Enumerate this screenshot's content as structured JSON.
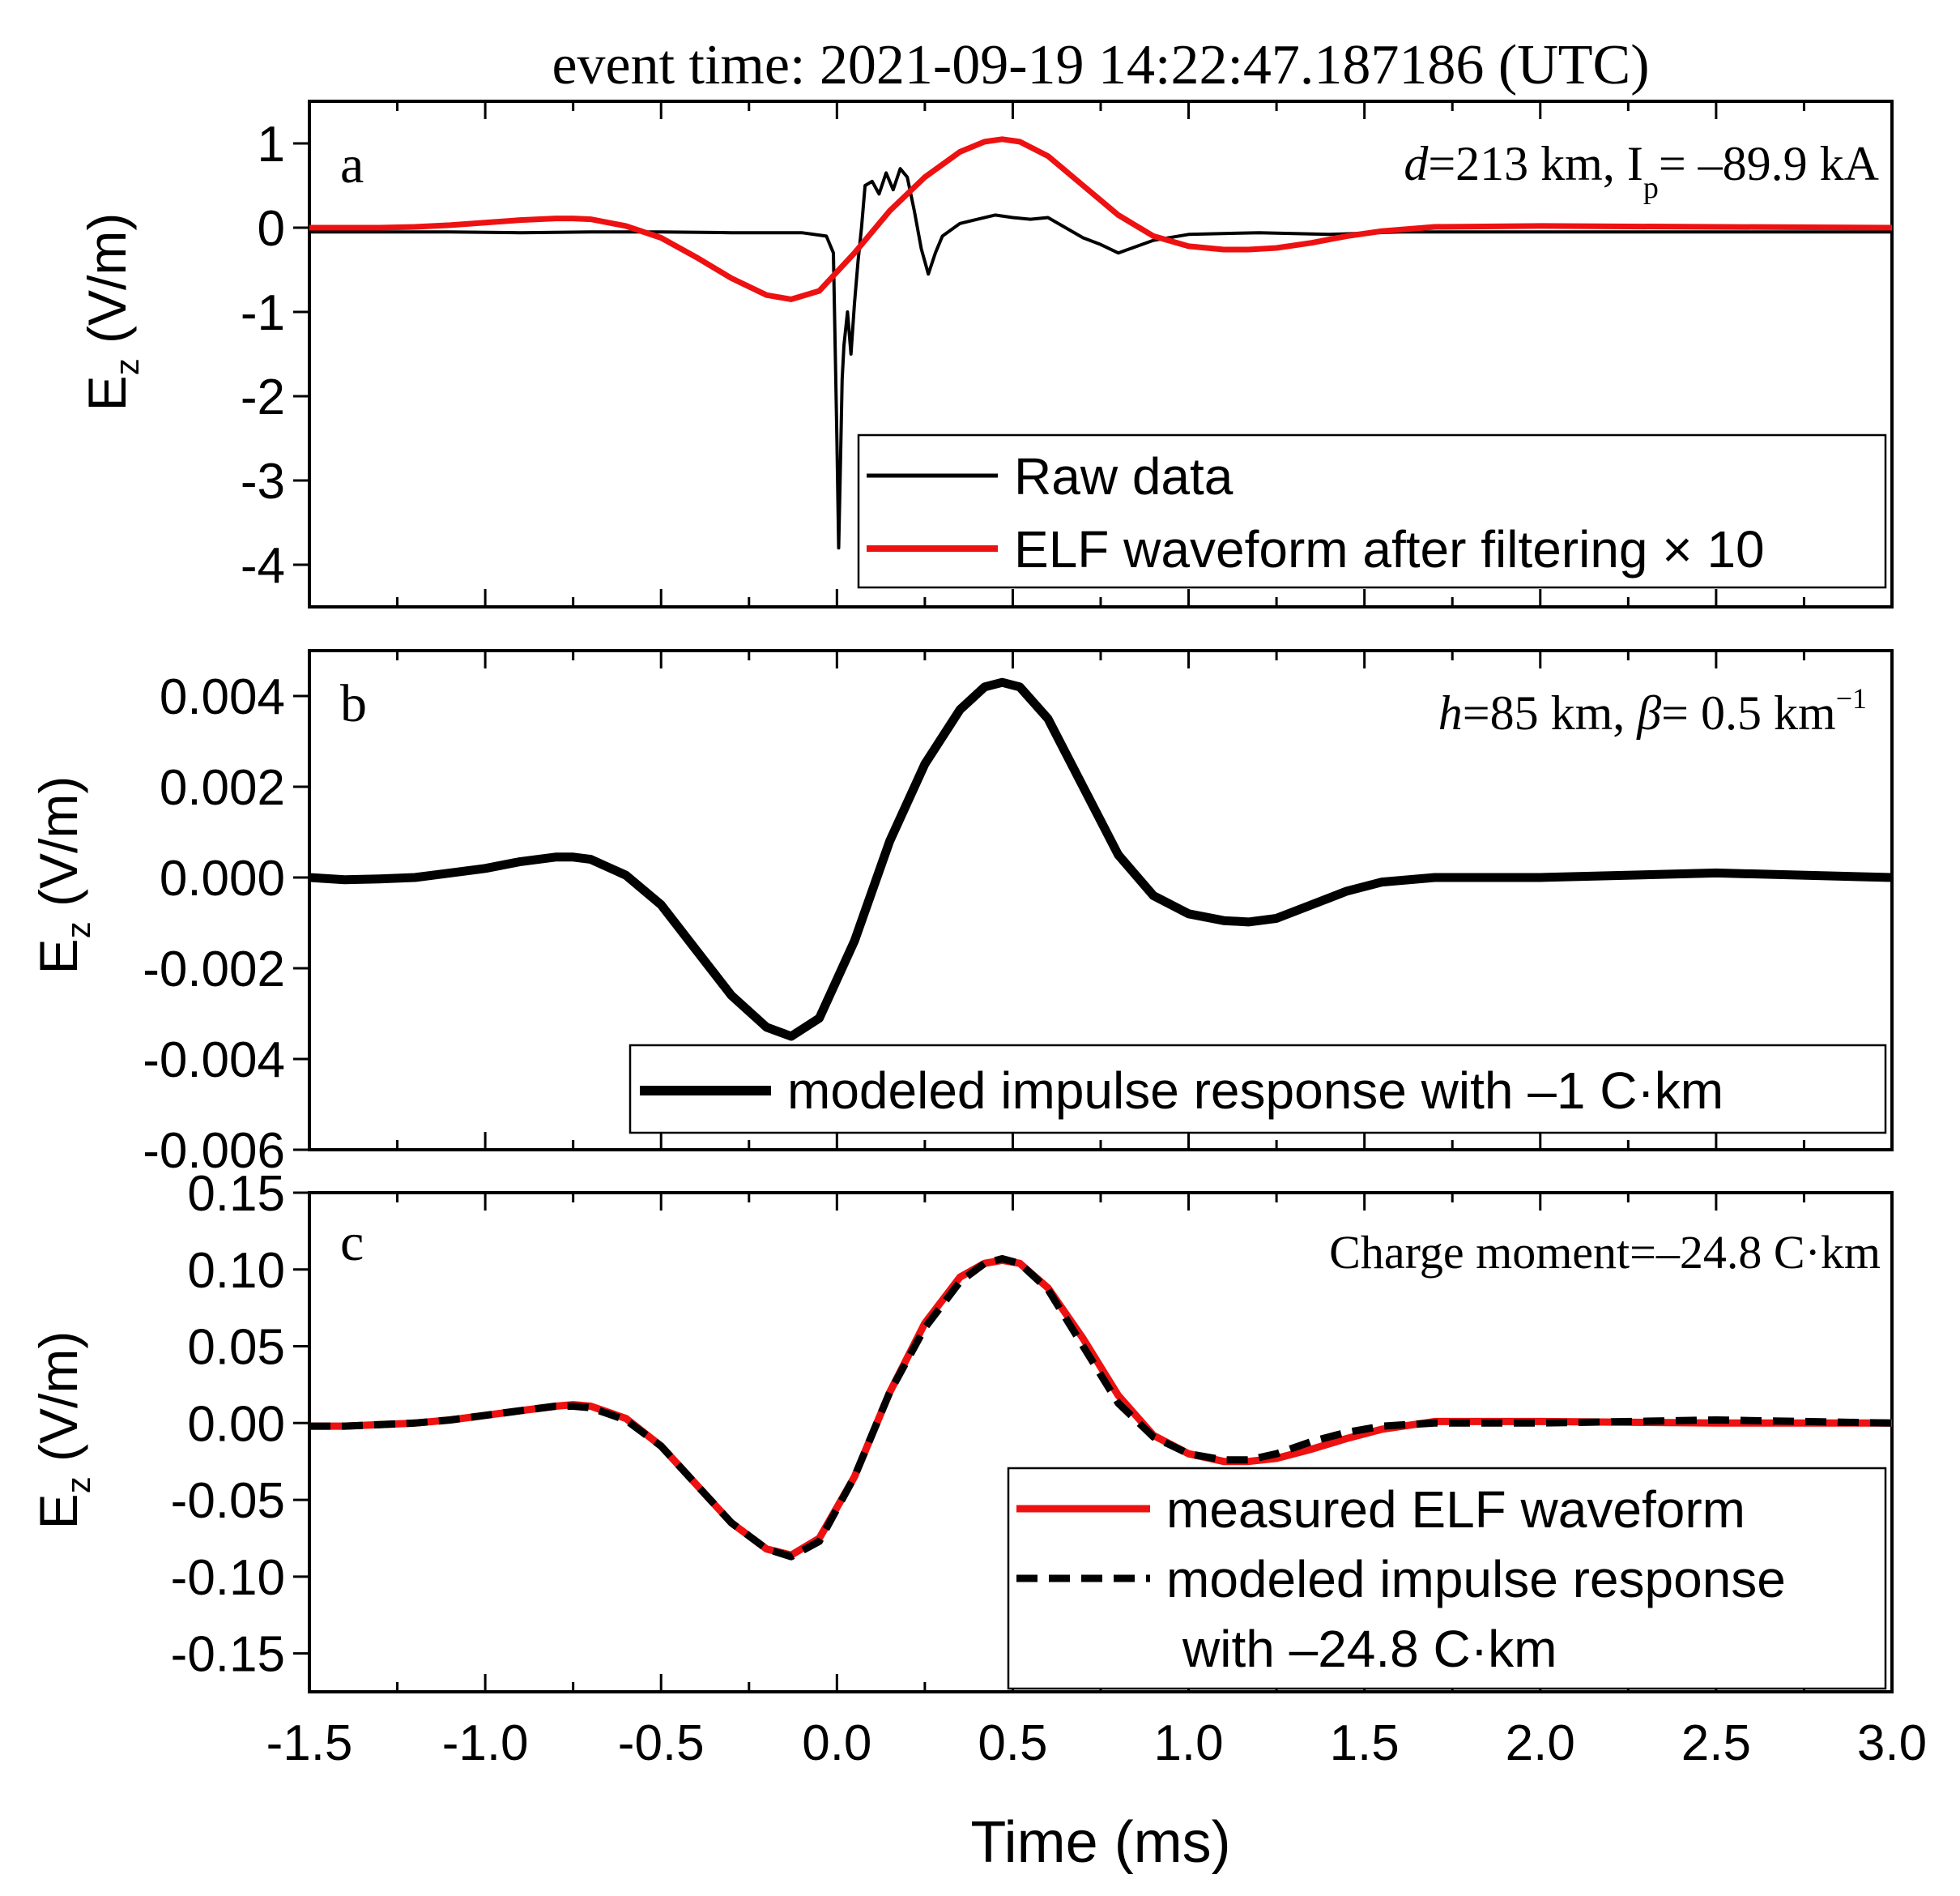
{
  "figure_title": "event time: 2021-09-19 14:22:47.187186 (UTC)",
  "shared_xlabel": "Time (ms)",
  "colors": {
    "red": "#ee1111",
    "black": "#000000"
  },
  "chart_data": [
    {
      "type": "line",
      "panel_letter": "a",
      "ylabel": {
        "main": "E",
        "sub": "z",
        "unit": " (V/m)"
      },
      "annotation": {
        "d_sym": "d",
        "d_rest": "=213 km, I",
        "i_sub": "p",
        "i_rest": "= –89.9 kA"
      },
      "xlim": [
        -1.5,
        3.0
      ],
      "ylim": [
        -4.5,
        1.5
      ],
      "yticks": [
        1,
        0,
        -1,
        -2,
        -3,
        -4
      ],
      "yticklabels": [
        "1",
        "0",
        "-1",
        "-2",
        "-3",
        "-4"
      ],
      "legend": {
        "placement": "bottom-right",
        "entries": [
          "Raw data",
          "ELF waveform after filtering × 10"
        ]
      },
      "series": [
        {
          "name": "Raw data",
          "color": "#000000",
          "style": "solid-thin",
          "x": [
            -1.5,
            -1.3,
            -1.1,
            -0.9,
            -0.7,
            -0.5,
            -0.3,
            -0.1,
            -0.03,
            -0.01,
            0.0,
            0.005,
            0.01,
            0.015,
            0.02,
            0.03,
            0.04,
            0.05,
            0.06,
            0.07,
            0.08,
            0.1,
            0.12,
            0.14,
            0.16,
            0.18,
            0.2,
            0.22,
            0.24,
            0.26,
            0.28,
            0.3,
            0.35,
            0.4,
            0.45,
            0.5,
            0.55,
            0.6,
            0.65,
            0.7,
            0.75,
            0.8,
            0.9,
            1.0,
            1.2,
            1.4,
            1.6,
            1.8,
            2.0,
            2.2,
            2.4,
            2.6,
            2.8,
            3.0
          ],
          "y": [
            -0.05,
            -0.05,
            -0.05,
            -0.06,
            -0.05,
            -0.05,
            -0.06,
            -0.06,
            -0.1,
            -0.3,
            -2.5,
            -3.8,
            -2.8,
            -1.8,
            -1.4,
            -1.0,
            -1.5,
            -0.9,
            -0.4,
            0.0,
            0.5,
            0.55,
            0.4,
            0.65,
            0.45,
            0.7,
            0.6,
            0.2,
            -0.25,
            -0.55,
            -0.3,
            -0.1,
            0.05,
            0.1,
            0.15,
            0.12,
            0.1,
            0.12,
            0.0,
            -0.12,
            -0.2,
            -0.3,
            -0.15,
            -0.08,
            -0.06,
            -0.08,
            -0.05,
            -0.05,
            -0.05,
            -0.05,
            -0.05,
            -0.05,
            -0.05,
            -0.05
          ]
        },
        {
          "name": "ELF waveform after filtering × 10",
          "color": "#ee1111",
          "style": "solid",
          "x": [
            -1.5,
            -1.4,
            -1.3,
            -1.2,
            -1.1,
            -1.0,
            -0.9,
            -0.8,
            -0.75,
            -0.7,
            -0.6,
            -0.5,
            -0.4,
            -0.3,
            -0.2,
            -0.13,
            -0.05,
            0.05,
            0.15,
            0.25,
            0.35,
            0.42,
            0.47,
            0.52,
            0.6,
            0.7,
            0.8,
            0.9,
            1.0,
            1.1,
            1.17,
            1.25,
            1.35,
            1.45,
            1.55,
            1.7,
            2.0,
            2.5,
            3.0
          ],
          "y": [
            0.0,
            0.0,
            0.0,
            0.01,
            0.03,
            0.06,
            0.09,
            0.11,
            0.11,
            0.1,
            0.02,
            -0.12,
            -0.35,
            -0.6,
            -0.8,
            -0.85,
            -0.75,
            -0.3,
            0.2,
            0.6,
            0.9,
            1.02,
            1.05,
            1.02,
            0.85,
            0.5,
            0.15,
            -0.1,
            -0.22,
            -0.26,
            -0.26,
            -0.24,
            -0.18,
            -0.1,
            -0.04,
            0.01,
            0.02,
            0.01,
            0.0
          ]
        }
      ]
    },
    {
      "type": "line",
      "panel_letter": "b",
      "ylabel": {
        "main": "E",
        "sub": "z",
        "unit": " (V/m)"
      },
      "annotation": {
        "h_sym": "h",
        "h_rest": "=85 km, ",
        "beta_sym": "β",
        "beta_rest": "= 0.5 km",
        "exp": "−1"
      },
      "xlim": [
        -1.5,
        3.0
      ],
      "ylim": [
        -0.006,
        0.005
      ],
      "yticks": [
        0.004,
        0.002,
        0.0,
        -0.002,
        -0.004,
        -0.006
      ],
      "yticklabels": [
        "0.004",
        "0.002",
        "0.000",
        "-0.002",
        "-0.004",
        "-0.006"
      ],
      "legend": {
        "placement": "bottom-right",
        "entries": [
          "modeled impulse response with –1 C·km"
        ]
      },
      "series": [
        {
          "name": "modeled impulse response with –1 C·km",
          "color": "#000000",
          "style": "solid-thick",
          "x": [
            -1.5,
            -1.4,
            -1.3,
            -1.2,
            -1.1,
            -1.0,
            -0.9,
            -0.8,
            -0.75,
            -0.7,
            -0.6,
            -0.5,
            -0.4,
            -0.3,
            -0.2,
            -0.13,
            -0.05,
            0.05,
            0.15,
            0.25,
            0.35,
            0.42,
            0.47,
            0.52,
            0.6,
            0.7,
            0.8,
            0.9,
            1.0,
            1.1,
            1.17,
            1.25,
            1.35,
            1.45,
            1.55,
            1.7,
            2.0,
            2.5,
            3.0
          ],
          "y": [
            0.0,
            -5e-05,
            -3e-05,
            0.0,
            0.0001,
            0.0002,
            0.00035,
            0.00045,
            0.00045,
            0.0004,
            5e-05,
            -0.0006,
            -0.0016,
            -0.0026,
            -0.0033,
            -0.0035,
            -0.0031,
            -0.0014,
            0.0008,
            0.0025,
            0.0037,
            0.0042,
            0.0043,
            0.0042,
            0.0035,
            0.002,
            0.0005,
            -0.0004,
            -0.0008,
            -0.00095,
            -0.00098,
            -0.0009,
            -0.0006,
            -0.0003,
            -0.0001,
            0.0,
            0.0,
            0.0001,
            0.0
          ]
        }
      ]
    },
    {
      "type": "line",
      "panel_letter": "c",
      "ylabel": {
        "main": "E",
        "sub": "z",
        "unit": " (V/m)"
      },
      "annotation": {
        "text": "Charge moment=–24.8 C·km"
      },
      "xlim": [
        -1.5,
        3.0
      ],
      "ylim": [
        -0.175,
        0.15
      ],
      "yticks": [
        0.15,
        0.1,
        0.05,
        0.0,
        -0.05,
        -0.1,
        -0.15
      ],
      "yticklabels": [
        "0.15",
        "0.10",
        "0.05",
        "0.00",
        "-0.05",
        "-0.10",
        "-0.15"
      ],
      "legend": {
        "placement": "bottom-right",
        "entries": [
          "measured ELF waveform",
          "modeled impulse response",
          "with –24.8 C·km"
        ]
      },
      "xticks": [
        -1.5,
        -1.0,
        -0.5,
        0.0,
        0.5,
        1.0,
        1.5,
        2.0,
        2.5,
        3.0
      ],
      "xticklabels": [
        "-1.5",
        "-1.0",
        "-0.5",
        "0.0",
        "0.5",
        "1.0",
        "1.5",
        "2.0",
        "2.5",
        "3.0"
      ],
      "series": [
        {
          "name": "measured ELF waveform",
          "color": "#ee1111",
          "style": "solid",
          "x": [
            -1.5,
            -1.4,
            -1.3,
            -1.2,
            -1.1,
            -1.0,
            -0.9,
            -0.8,
            -0.75,
            -0.7,
            -0.6,
            -0.5,
            -0.4,
            -0.3,
            -0.2,
            -0.13,
            -0.05,
            0.05,
            0.15,
            0.25,
            0.35,
            0.42,
            0.47,
            0.52,
            0.6,
            0.7,
            0.8,
            0.9,
            1.0,
            1.1,
            1.17,
            1.25,
            1.35,
            1.45,
            1.55,
            1.7,
            2.0,
            2.5,
            3.0
          ],
          "y": [
            -0.002,
            -0.002,
            -0.001,
            0.0,
            0.002,
            0.005,
            0.008,
            0.011,
            0.012,
            0.011,
            0.003,
            -0.015,
            -0.04,
            -0.065,
            -0.082,
            -0.086,
            -0.075,
            -0.035,
            0.02,
            0.065,
            0.095,
            0.104,
            0.106,
            0.104,
            0.088,
            0.055,
            0.018,
            -0.008,
            -0.02,
            -0.025,
            -0.025,
            -0.023,
            -0.017,
            -0.01,
            -0.004,
            0.001,
            0.001,
            0.0,
            0.0
          ]
        },
        {
          "name": "modeled impulse response with –24.8 C·km",
          "color": "#000000",
          "style": "dashed",
          "x": [
            -1.5,
            -1.4,
            -1.3,
            -1.2,
            -1.1,
            -1.0,
            -0.9,
            -0.8,
            -0.75,
            -0.7,
            -0.6,
            -0.5,
            -0.4,
            -0.3,
            -0.2,
            -0.13,
            -0.05,
            0.05,
            0.15,
            0.25,
            0.35,
            0.42,
            0.47,
            0.52,
            0.6,
            0.7,
            0.8,
            0.9,
            1.0,
            1.1,
            1.17,
            1.25,
            1.35,
            1.45,
            1.55,
            1.7,
            2.0,
            2.5,
            3.0
          ],
          "y": [
            -0.002,
            -0.002,
            -0.001,
            0.0,
            0.002,
            0.005,
            0.008,
            0.011,
            0.011,
            0.01,
            0.002,
            -0.015,
            -0.04,
            -0.065,
            -0.082,
            -0.087,
            -0.077,
            -0.035,
            0.02,
            0.062,
            0.092,
            0.104,
            0.107,
            0.104,
            0.087,
            0.05,
            0.013,
            -0.009,
            -0.02,
            -0.024,
            -0.024,
            -0.02,
            -0.012,
            -0.006,
            -0.002,
            0.0,
            0.0,
            0.002,
            0.0
          ]
        }
      ]
    }
  ]
}
